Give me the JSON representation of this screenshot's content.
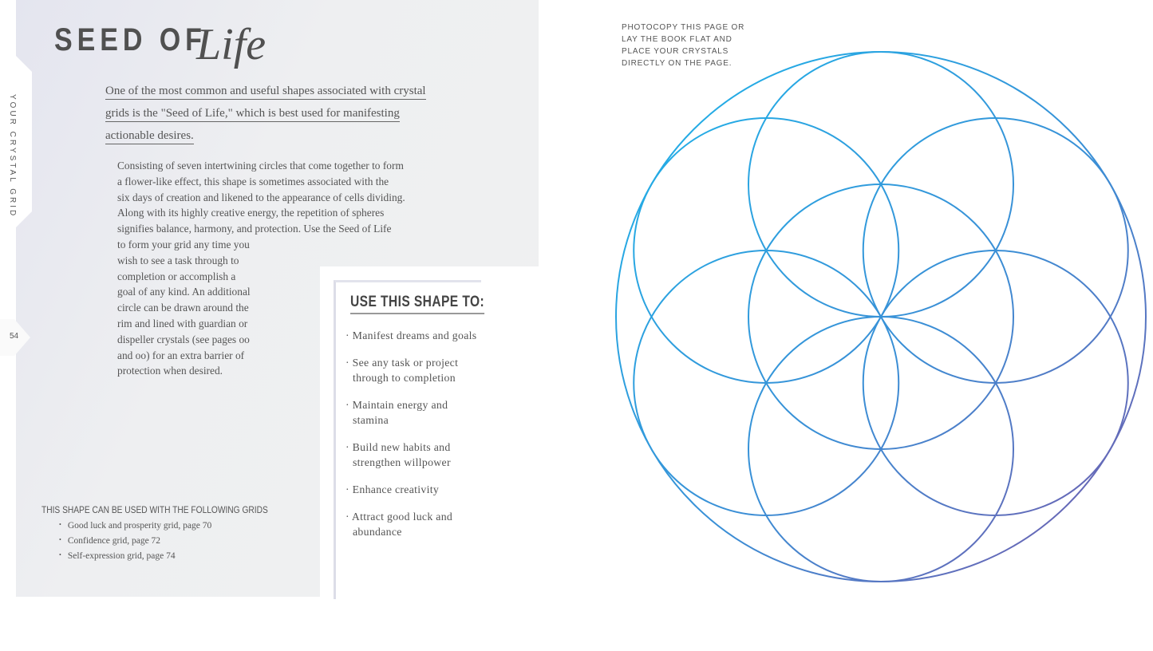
{
  "sidebar": {
    "section_label": "YOUR CRYSTAL GRID",
    "page_number": "54"
  },
  "title": {
    "part1": "SEED OF",
    "part2": "Life"
  },
  "lead": "One of the most common and useful shapes associated with crystal grids is the \"Seed of Life,\" which is best used for manifesting actionable desires.",
  "body_lines": [
    "Consisting of seven intertwining circles that come together to form",
    "a flower-like effect, this shape is sometimes associated with the",
    "six days of creation and likened to the appearance of cells dividing.",
    "Along with its highly creative energy, the repetition of spheres",
    "signifies balance, harmony, and protection. Use the Seed of Life",
    "to form your grid any time you",
    "wish to see a task through to",
    "completion or accomplish a",
    "goal of any kind. An additional",
    "circle can be drawn around the",
    "rim and lined with guardian or",
    "dispeller crystals (see pages oo",
    "and oo) for an extra barrier of",
    "protection when desired."
  ],
  "use_box": {
    "heading": "USE THIS SHAPE TO:",
    "items": [
      "· Manifest dreams and goals",
      "· See any task or project through to completion",
      "· Maintain energy and stamina",
      "· Build new habits and strengthen willpower",
      "· Enhance creativity",
      "· Attract good luck and abundance"
    ]
  },
  "grids": {
    "heading": "THIS SHAPE CAN BE USED WITH THE FOLLOWING GRIDS",
    "items": [
      "Good luck and prosperity grid, page 70",
      "Confidence grid, page 72",
      "Self-expression grid, page 74"
    ]
  },
  "note": [
    "PHOTOCOPY THIS PAGE OR",
    "LAY THE BOOK FLAT AND",
    "PLACE YOUR CRYSTALS",
    "DIRECTLY ON THE PAGE."
  ],
  "diagram": {
    "shape": "seed-of-life",
    "circles": 7,
    "outer_ring": true,
    "gradient": [
      "#1db5ea",
      "#3a8fd6",
      "#7a58aa"
    ]
  }
}
